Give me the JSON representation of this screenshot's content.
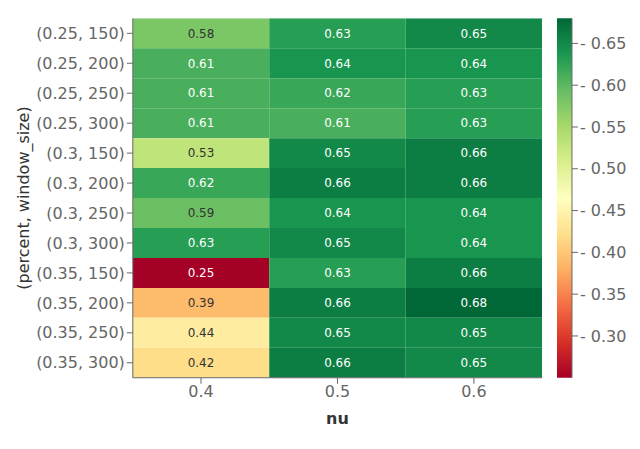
{
  "chart_data": {
    "type": "heatmap",
    "x_label": "nu",
    "y_label": "(percent, window_size)",
    "x_categories": [
      "0.4",
      "0.5",
      "0.6"
    ],
    "y_categories": [
      "(0.25, 150)",
      "(0.25, 200)",
      "(0.25, 250)",
      "(0.25, 300)",
      "(0.3, 150)",
      "(0.3, 200)",
      "(0.3, 250)",
      "(0.3, 300)",
      "(0.35, 150)",
      "(0.35, 200)",
      "(0.35, 250)",
      "(0.35, 300)"
    ],
    "values": [
      [
        0.58,
        0.63,
        0.65
      ],
      [
        0.61,
        0.64,
        0.64
      ],
      [
        0.61,
        0.62,
        0.63
      ],
      [
        0.61,
        0.61,
        0.63
      ],
      [
        0.53,
        0.65,
        0.66
      ],
      [
        0.62,
        0.66,
        0.66
      ],
      [
        0.59,
        0.64,
        0.64
      ],
      [
        0.63,
        0.65,
        0.64
      ],
      [
        0.25,
        0.63,
        0.66
      ],
      [
        0.39,
        0.66,
        0.68
      ],
      [
        0.44,
        0.65,
        0.65
      ],
      [
        0.42,
        0.66,
        0.65
      ]
    ],
    "colorbar_range": [
      0.25,
      0.68
    ],
    "colorbar_ticks": [
      {
        "value": 0.3,
        "label": "- 0.30"
      },
      {
        "value": 0.35,
        "label": "- 0.35"
      },
      {
        "value": 0.4,
        "label": "- 0.40"
      },
      {
        "value": 0.45,
        "label": "- 0.45"
      },
      {
        "value": 0.5,
        "label": "- 0.50"
      },
      {
        "value": 0.55,
        "label": "- 0.55"
      },
      {
        "value": 0.6,
        "label": "- 0.60"
      },
      {
        "value": 0.65,
        "label": "- 0.65"
      }
    ],
    "data_labels": true
  }
}
